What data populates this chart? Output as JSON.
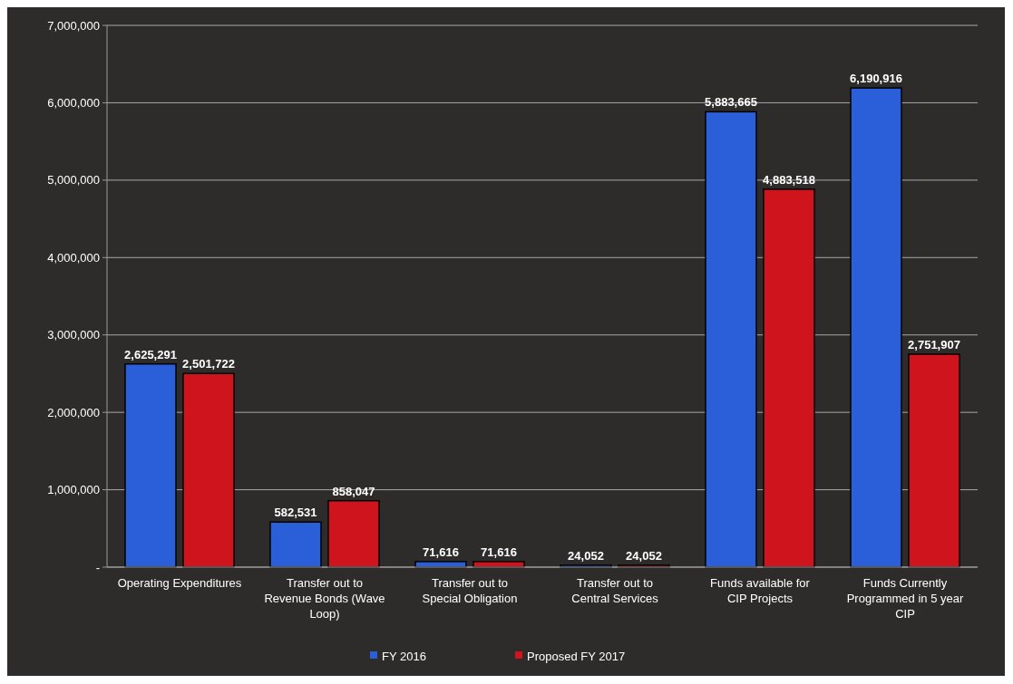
{
  "chart_data": {
    "type": "bar",
    "categories": [
      "Operating Expenditures",
      "Transfer out to Revenue Bonds (Wave Loop)",
      "Transfer out to Special Obligation",
      "Transfer out to Central Services",
      "Funds available for CIP Projects",
      "Funds Currently Programmed in 5 year CIP"
    ],
    "series": [
      {
        "name": "FY 2016",
        "color": "#2b5fd9",
        "values": [
          2625291,
          582531,
          71616,
          24052,
          5883665,
          6190916
        ],
        "value_labels": [
          "2,625,291",
          "582,531",
          "71,616",
          "24,052",
          "5,883,665",
          "6,190,916"
        ]
      },
      {
        "name": "Proposed FY 2017",
        "color": "#d0141e",
        "values": [
          2501722,
          858047,
          71616,
          24052,
          4883518,
          2751907
        ],
        "value_labels": [
          "2,501,722",
          "858,047",
          "71,616",
          "24,052",
          "4,883,518",
          "2,751,907"
        ]
      }
    ],
    "ylim": [
      0,
      7000000
    ],
    "yticks": [
      {
        "value": 0,
        "label": "-"
      },
      {
        "value": 1000000,
        "label": "1,000,000"
      },
      {
        "value": 2000000,
        "label": "2,000,000"
      },
      {
        "value": 3000000,
        "label": "3,000,000"
      },
      {
        "value": 4000000,
        "label": "4,000,000"
      },
      {
        "value": 5000000,
        "label": "5,000,000"
      },
      {
        "value": 6000000,
        "label": "6,000,000"
      },
      {
        "value": 7000000,
        "label": "7,000,000"
      }
    ],
    "grid": true,
    "legend": "bottom"
  }
}
